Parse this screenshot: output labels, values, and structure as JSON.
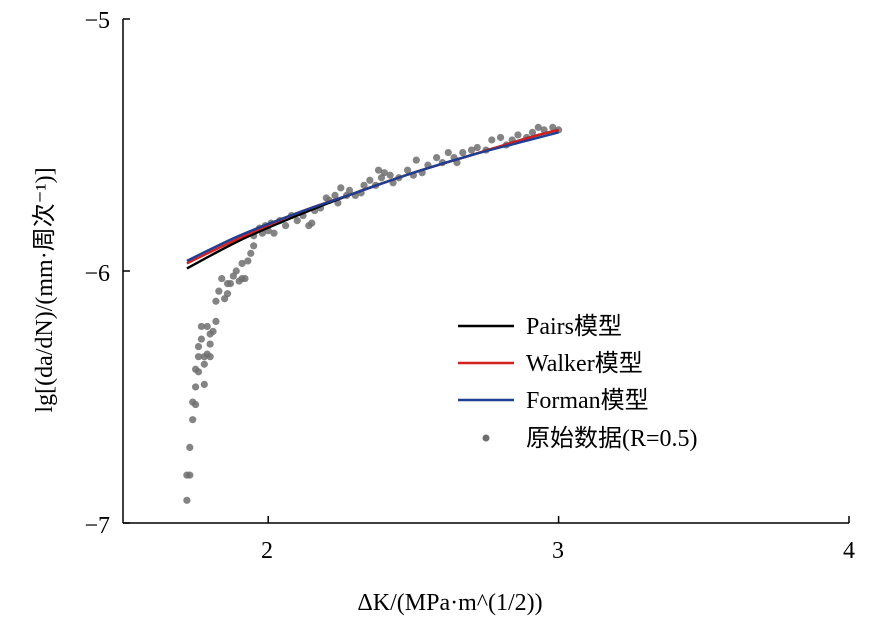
{
  "chart_data": {
    "type": "scatter",
    "xlabel": "ΔK/(MPa·m^(1/2))",
    "ylabel": "lg[(da/dN)/(mm·周次⁻¹)]",
    "xlim": [
      1.5,
      4
    ],
    "ylim": [
      -7,
      -5
    ],
    "x_ticks": [
      "2",
      "3",
      "4"
    ],
    "y_ticks": [
      "−5",
      "−6",
      "−7"
    ],
    "legend_position": "center-right",
    "colors": {
      "pairs": "#000000",
      "walker": "#d42020",
      "forman": "#1f3f95",
      "data": "#6e6e6e"
    },
    "series": [
      {
        "name": "Pairs模型",
        "kind": "line",
        "color": "#000000",
        "x": [
          1.72,
          1.9,
          2.1,
          2.3,
          2.5,
          2.7,
          2.9,
          3.0
        ],
        "y": [
          -5.99,
          -5.88,
          -5.78,
          -5.69,
          -5.61,
          -5.54,
          -5.47,
          -5.44
        ]
      },
      {
        "name": "Walker模型",
        "kind": "line",
        "color": "#d42020",
        "x": [
          1.72,
          1.9,
          2.1,
          2.3,
          2.5,
          2.7,
          2.9,
          3.0
        ],
        "y": [
          -5.97,
          -5.87,
          -5.77,
          -5.69,
          -5.61,
          -5.54,
          -5.47,
          -5.44
        ]
      },
      {
        "name": "Forman模型",
        "kind": "line",
        "color": "#1f3f95",
        "x": [
          1.72,
          1.9,
          2.1,
          2.3,
          2.5,
          2.7,
          2.9,
          3.0
        ],
        "y": [
          -5.96,
          -5.86,
          -5.77,
          -5.69,
          -5.61,
          -5.54,
          -5.48,
          -5.45
        ]
      },
      {
        "name": "原始数据(R=0.5)",
        "kind": "scatter",
        "color": "#6e6e6e",
        "points": [
          [
            1.72,
            -6.91
          ],
          [
            1.72,
            -6.81
          ],
          [
            1.73,
            -6.81
          ],
          [
            1.73,
            -6.7
          ],
          [
            1.74,
            -6.59
          ],
          [
            1.74,
            -6.52
          ],
          [
            1.75,
            -6.53
          ],
          [
            1.75,
            -6.46
          ],
          [
            1.75,
            -6.39
          ],
          [
            1.76,
            -6.4
          ],
          [
            1.76,
            -6.34
          ],
          [
            1.76,
            -6.3
          ],
          [
            1.77,
            -6.27
          ],
          [
            1.77,
            -6.22
          ],
          [
            1.78,
            -6.37
          ],
          [
            1.78,
            -6.45
          ],
          [
            1.78,
            -6.34
          ],
          [
            1.79,
            -6.22
          ],
          [
            1.79,
            -6.33
          ],
          [
            1.8,
            -6.25
          ],
          [
            1.8,
            -6.29
          ],
          [
            1.8,
            -6.34
          ],
          [
            1.81,
            -6.24
          ],
          [
            1.82,
            -6.2
          ],
          [
            1.82,
            -6.12
          ],
          [
            1.83,
            -6.08
          ],
          [
            1.84,
            -6.03
          ],
          [
            1.85,
            -6.11
          ],
          [
            1.86,
            -6.09
          ],
          [
            1.86,
            -6.05
          ],
          [
            1.87,
            -6.05
          ],
          [
            1.88,
            -6.02
          ],
          [
            1.89,
            -6.0
          ],
          [
            1.9,
            -6.04
          ],
          [
            1.91,
            -6.03
          ],
          [
            1.91,
            -5.97
          ],
          [
            1.92,
            -6.03
          ],
          [
            1.93,
            -5.96
          ],
          [
            1.94,
            -5.93
          ],
          [
            1.95,
            -5.9
          ],
          [
            1.95,
            -5.86
          ],
          [
            1.97,
            -5.83
          ],
          [
            1.98,
            -5.85
          ],
          [
            1.99,
            -5.82
          ],
          [
            2.0,
            -5.84
          ],
          [
            2.01,
            -5.81
          ],
          [
            2.02,
            -5.85
          ],
          [
            2.04,
            -5.8
          ],
          [
            2.06,
            -5.82
          ],
          [
            2.08,
            -5.78
          ],
          [
            2.1,
            -5.8
          ],
          [
            2.12,
            -5.78
          ],
          [
            2.14,
            -5.82
          ],
          [
            2.15,
            -5.81
          ],
          [
            2.16,
            -5.76
          ],
          [
            2.18,
            -5.75
          ],
          [
            2.2,
            -5.71
          ],
          [
            2.21,
            -5.72
          ],
          [
            2.23,
            -5.7
          ],
          [
            2.24,
            -5.73
          ],
          [
            2.25,
            -5.67
          ],
          [
            2.27,
            -5.7
          ],
          [
            2.28,
            -5.68
          ],
          [
            2.3,
            -5.7
          ],
          [
            2.32,
            -5.69
          ],
          [
            2.33,
            -5.66
          ],
          [
            2.35,
            -5.64
          ],
          [
            2.37,
            -5.66
          ],
          [
            2.38,
            -5.6
          ],
          [
            2.39,
            -5.63
          ],
          [
            2.4,
            -5.61
          ],
          [
            2.42,
            -5.62
          ],
          [
            2.43,
            -5.65
          ],
          [
            2.45,
            -5.63
          ],
          [
            2.48,
            -5.6
          ],
          [
            2.5,
            -5.62
          ],
          [
            2.51,
            -5.56
          ],
          [
            2.53,
            -5.61
          ],
          [
            2.55,
            -5.58
          ],
          [
            2.58,
            -5.55
          ],
          [
            2.6,
            -5.57
          ],
          [
            2.62,
            -5.53
          ],
          [
            2.64,
            -5.55
          ],
          [
            2.65,
            -5.57
          ],
          [
            2.67,
            -5.53
          ],
          [
            2.7,
            -5.52
          ],
          [
            2.72,
            -5.51
          ],
          [
            2.75,
            -5.52
          ],
          [
            2.77,
            -5.48
          ],
          [
            2.8,
            -5.47
          ],
          [
            2.82,
            -5.5
          ],
          [
            2.84,
            -5.48
          ],
          [
            2.86,
            -5.46
          ],
          [
            2.89,
            -5.47
          ],
          [
            2.91,
            -5.45
          ],
          [
            2.93,
            -5.43
          ],
          [
            2.95,
            -5.44
          ],
          [
            2.98,
            -5.43
          ],
          [
            3.0,
            -5.44
          ]
        ]
      }
    ]
  }
}
